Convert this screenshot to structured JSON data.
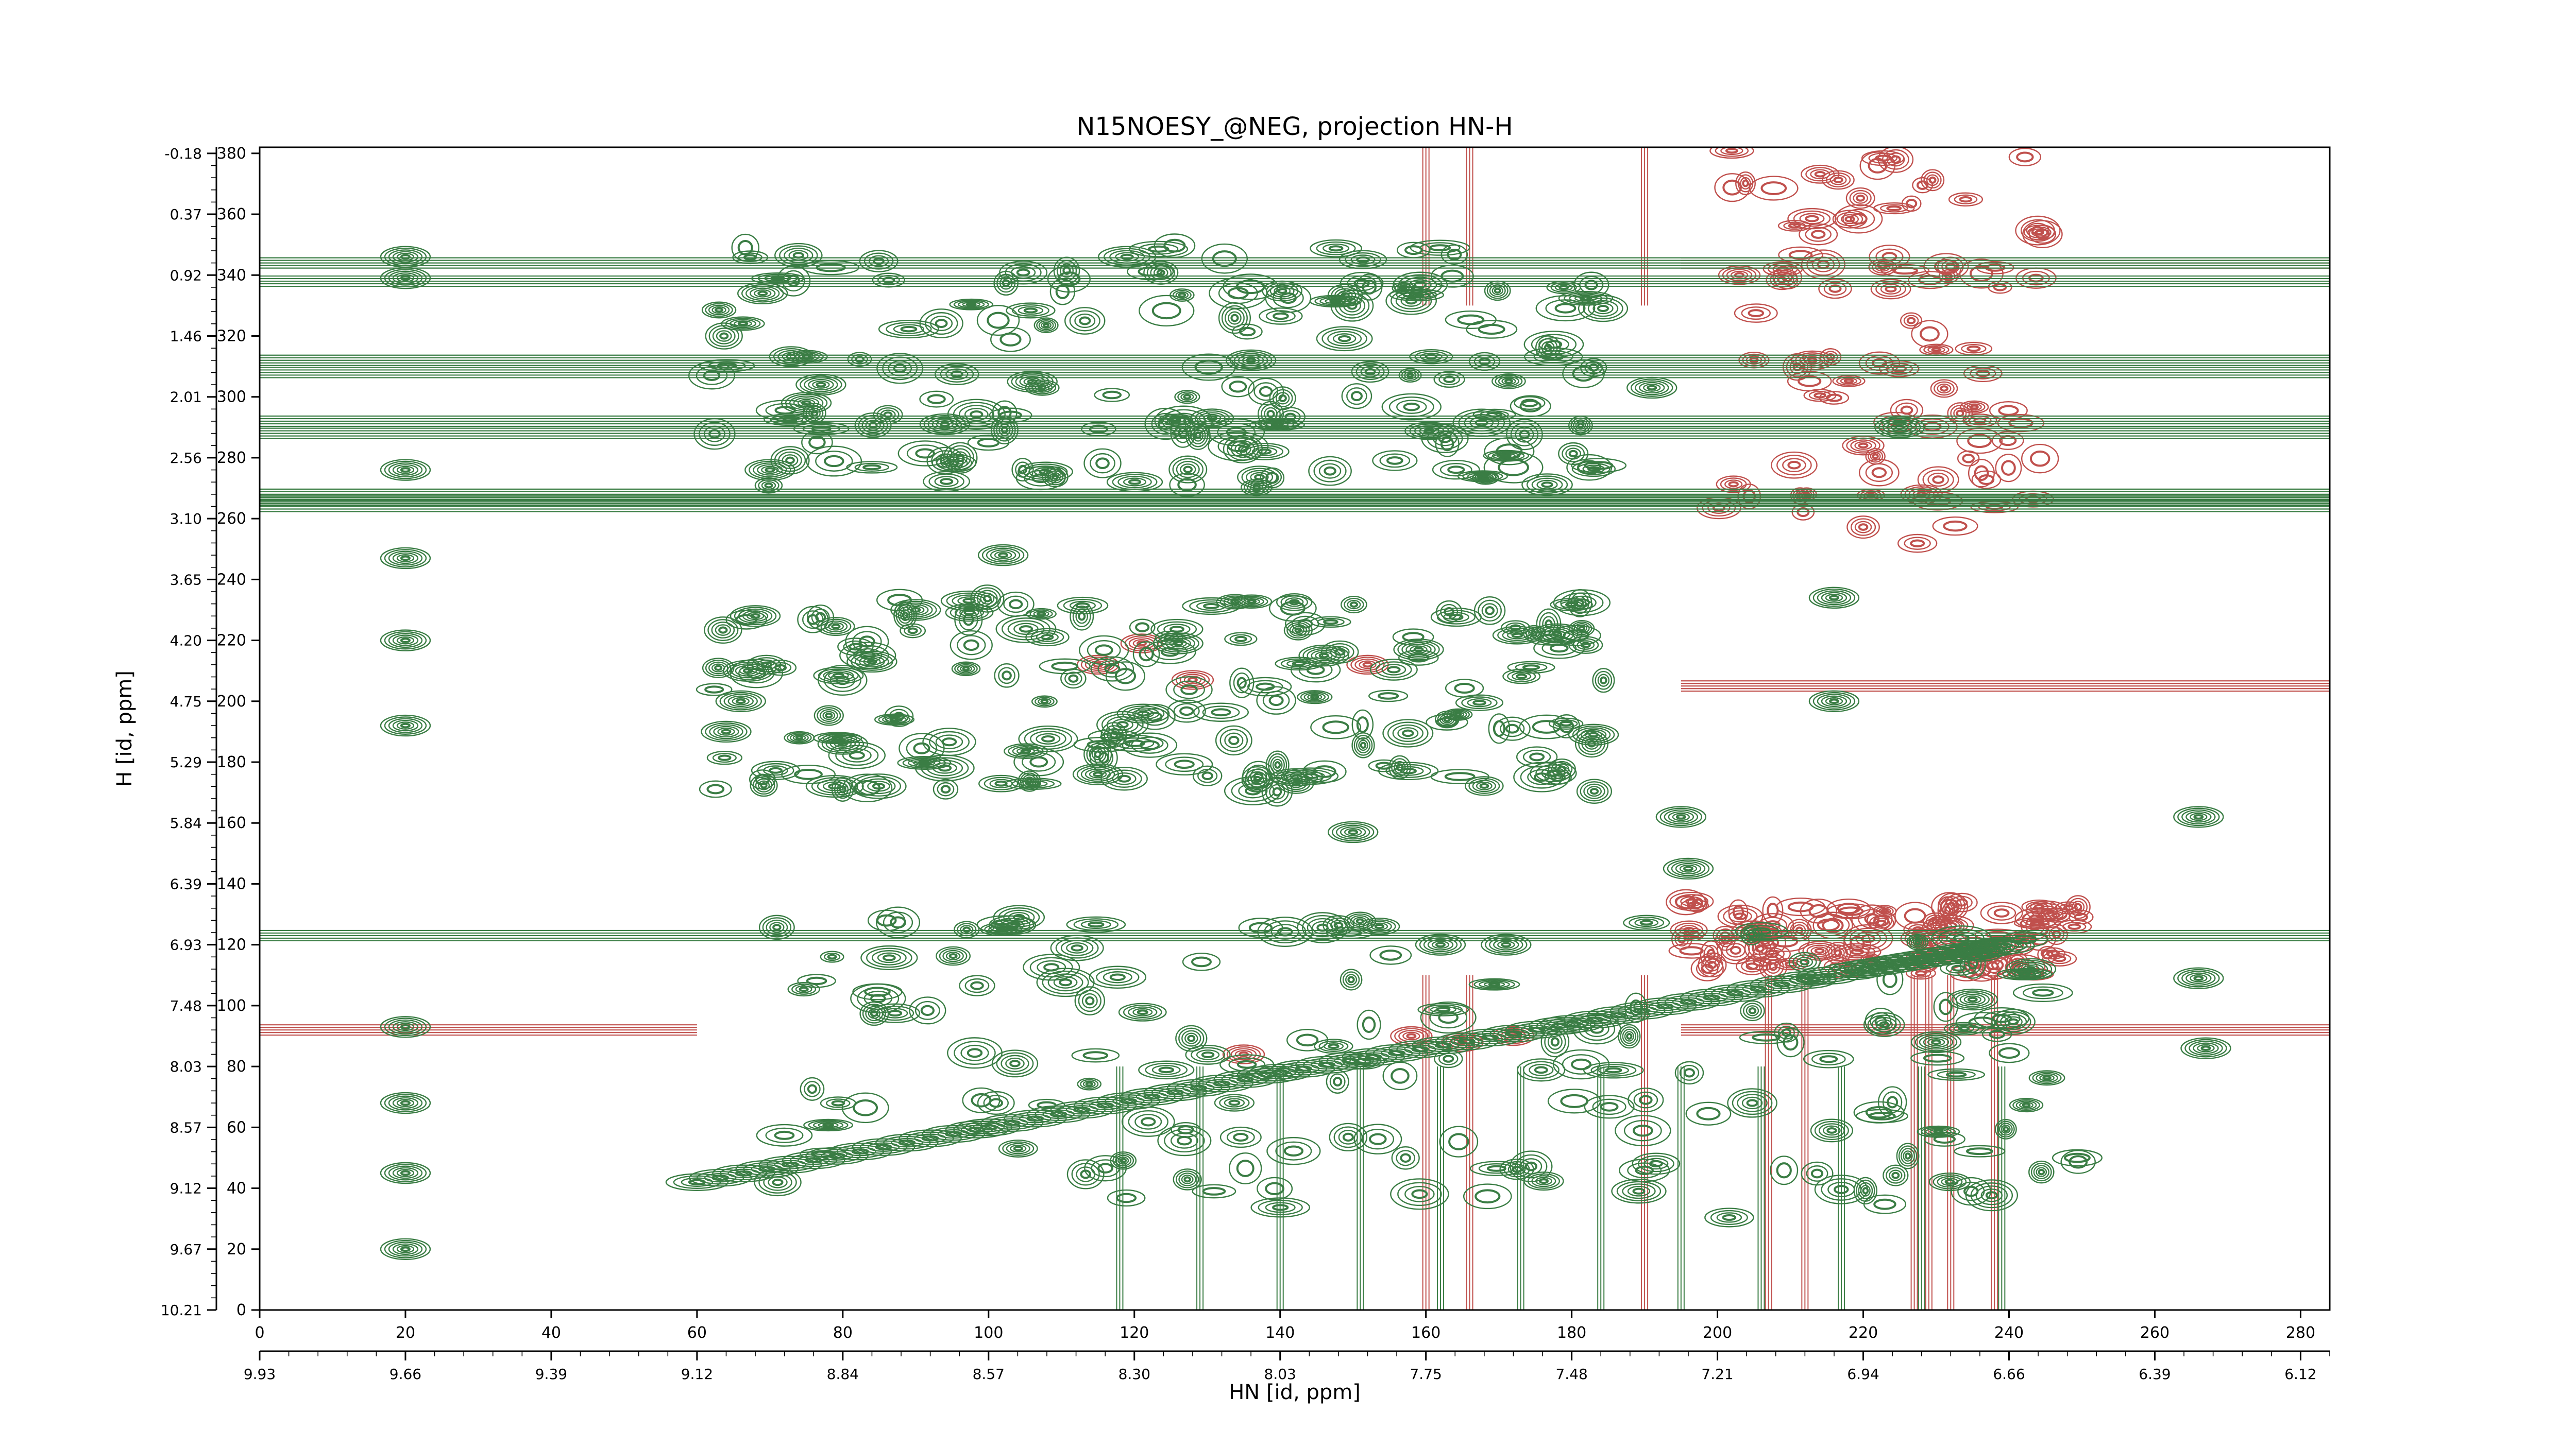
{
  "chart_data": {
    "type": "contour",
    "title": "N15NOESY_@NEG, projection HN-H",
    "xlabel": "HN [id, ppm]",
    "ylabel": "H [id, ppm]",
    "x_index_ticks": [
      "0",
      "20",
      "40",
      "60",
      "80",
      "100",
      "120",
      "140",
      "160",
      "180",
      "200",
      "220",
      "240",
      "260",
      "280"
    ],
    "x_ppm_ticks": [
      "9.93",
      "9.66",
      "9.39",
      "9.12",
      "8.84",
      "8.57",
      "8.30",
      "8.03",
      "7.75",
      "7.48",
      "7.21",
      "6.94",
      "6.66",
      "6.39",
      "6.12"
    ],
    "y_index_ticks": [
      "0",
      "20",
      "40",
      "60",
      "80",
      "100",
      "120",
      "140",
      "160",
      "180",
      "200",
      "220",
      "240",
      "260",
      "280",
      "300",
      "320",
      "340",
      "360",
      "380"
    ],
    "y_ppm_ticks": [
      "10.21",
      "9.67",
      "9.12",
      "8.57",
      "8.03",
      "7.48",
      "6.93",
      "6.39",
      "5.84",
      "5.29",
      "4.75",
      "4.20",
      "3.65",
      "3.10",
      "2.56",
      "2.01",
      "1.46",
      "0.92",
      "0.37",
      "-0.18"
    ],
    "xlim": [
      0,
      284
    ],
    "ylim": [
      0,
      382
    ],
    "series": [
      {
        "sign": "positive",
        "color": "#3a7d44",
        "peaks": [
          [
            20,
            20
          ],
          [
            20,
            45
          ],
          [
            20,
            68
          ],
          [
            20,
            93
          ],
          [
            20,
            192
          ],
          [
            20,
            220
          ],
          [
            20,
            247
          ],
          [
            20,
            276
          ],
          [
            20,
            339
          ],
          [
            20,
            346
          ],
          [
            64,
            190
          ],
          [
            66,
            200
          ],
          [
            67,
            210
          ],
          [
            68,
            228
          ],
          [
            70,
            276
          ],
          [
            69,
            334
          ],
          [
            75,
            298
          ],
          [
            77,
            304
          ],
          [
            80,
            186
          ],
          [
            84,
            213
          ],
          [
            90,
            230
          ],
          [
            94,
            291
          ],
          [
            102,
            248
          ],
          [
            106,
            305
          ],
          [
            115,
            176
          ],
          [
            126,
            219
          ],
          [
            136,
            312
          ],
          [
            146,
            215
          ],
          [
            150,
            157
          ],
          [
            159,
            217
          ],
          [
            162,
            120
          ],
          [
            171,
            120
          ],
          [
            178,
            222
          ],
          [
            183,
            189
          ],
          [
            191,
            303
          ],
          [
            195,
            162
          ],
          [
            196,
            145
          ],
          [
            216,
            234
          ],
          [
            216,
            200
          ],
          [
            225,
            290
          ],
          [
            230,
            88
          ],
          [
            235,
            102
          ],
          [
            236,
            118
          ],
          [
            243,
            112
          ],
          [
            266,
            109
          ],
          [
            266,
            162
          ],
          [
            267,
            86
          ]
        ],
        "diagonal": [
          [
            60,
            42
          ],
          [
            100,
            60
          ],
          [
            140,
            78
          ],
          [
            180,
            94
          ],
          [
            220,
            112
          ],
          [
            240,
            120
          ]
        ],
        "horizontal_bands_y": [
          264,
          266,
          268,
          288,
          292,
          308,
          312,
          338,
          344,
          123
        ],
        "dense_regions": [
          {
            "x": [
              62,
              185
            ],
            "y": [
              170,
              235
            ]
          },
          {
            "x": [
              62,
              185
            ],
            "y": [
              270,
              350
            ]
          },
          {
            "x": [
              68,
              250
            ],
            "y": [
              30,
              130
            ]
          }
        ]
      },
      {
        "sign": "negative",
        "color": "#c0504d",
        "peaks": [
          [
            152,
            212
          ],
          [
            115,
            212
          ],
          [
            121,
            219
          ],
          [
            128,
            207
          ],
          [
            158,
            90
          ],
          [
            165,
            88
          ],
          [
            172,
            90
          ],
          [
            135,
            84
          ],
          [
            206,
            124
          ],
          [
            214,
            118
          ],
          [
            228,
            122
          ],
          [
            231,
            126
          ],
          [
            232,
            118
          ],
          [
            203,
            340
          ],
          [
            213,
            312
          ],
          [
            220,
            284
          ],
          [
            228,
            268
          ]
        ],
        "horizontal_bands_y": [
          205,
          92,
          344
        ],
        "vertical_streaks_x": [
          160,
          166,
          190,
          207,
          212,
          227,
          229,
          232,
          238
        ],
        "dense_regions": [
          {
            "x": [
              200,
              245
            ],
            "y": [
              250,
              382
            ]
          },
          {
            "x": [
              195,
              250
            ],
            "y": [
              110,
              135
            ]
          }
        ]
      }
    ],
    "grid": false
  }
}
